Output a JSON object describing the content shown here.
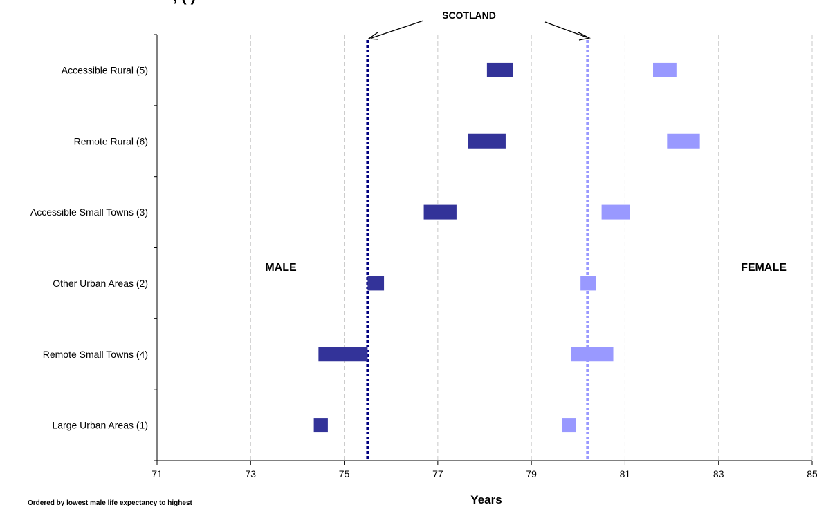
{
  "chart_data": {
    "type": "bar",
    "orientation": "horizontal-range",
    "categories": [
      "Accessible Rural (5)",
      "Remote Rural (6)",
      "Accessible Small Towns (3)",
      "Other Urban Areas (2)",
      "Remote Small Towns (4)",
      "Large Urban Areas (1)"
    ],
    "series": [
      {
        "name": "MALE",
        "color": "#333399",
        "ranges": [
          [
            78.05,
            78.6
          ],
          [
            77.65,
            78.45
          ],
          [
            76.7,
            77.4
          ],
          [
            75.5,
            75.85
          ],
          [
            74.45,
            75.5
          ],
          [
            74.35,
            74.65
          ]
        ]
      },
      {
        "name": "FEMALE",
        "color": "#9999ff",
        "ranges": [
          [
            81.6,
            82.1
          ],
          [
            81.9,
            82.6
          ],
          [
            80.5,
            81.1
          ],
          [
            80.05,
            80.38
          ],
          [
            79.85,
            80.75
          ],
          [
            79.65,
            79.95
          ]
        ]
      }
    ],
    "reference_lines": [
      {
        "series": "MALE",
        "value": 75.5,
        "color": "#000080",
        "style": "dotted"
      },
      {
        "series": "FEMALE",
        "value": 80.2,
        "color": "#9999ff",
        "style": "dotted"
      }
    ],
    "reference_label": "SCOTLAND",
    "xlim": [
      71,
      85
    ],
    "x_ticks": [
      "71",
      "73",
      "75",
      "77",
      "79",
      "81",
      "83",
      "85"
    ],
    "xlabel": "Years",
    "ylabel": "",
    "grid": "vertical dashed",
    "annotations": {
      "male": "MALE",
      "female": "FEMALE",
      "footnote": "Ordered by lowest male life expectancy to highest",
      "truncated_title": ", (                                              )"
    }
  }
}
